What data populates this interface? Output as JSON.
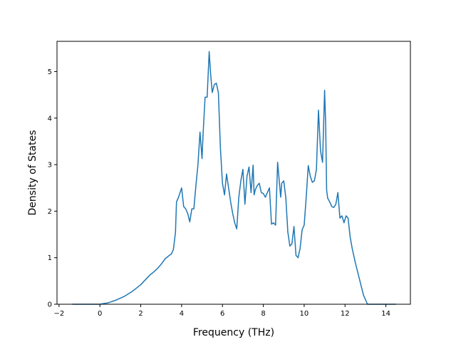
{
  "chart_data": {
    "type": "line",
    "title": "",
    "xlabel": "Frequency (THz)",
    "ylabel": "Density of States",
    "xlim": [
      -2.1,
      15.2
    ],
    "ylim": [
      0,
      5.65
    ],
    "xticks": [
      -2,
      0,
      2,
      4,
      6,
      8,
      10,
      12,
      14
    ],
    "yticks": [
      0,
      1,
      2,
      3,
      4,
      5
    ],
    "grid": false,
    "line_color": "#1f77b4",
    "series": [
      {
        "x": [
          -1.35,
          -0.5,
          0.0,
          0.4,
          0.8,
          1.2,
          1.6,
          2.0,
          2.3,
          2.45,
          2.6,
          2.8,
          3.0,
          3.2,
          3.4,
          3.5,
          3.6,
          3.7,
          3.75,
          3.85,
          4.0,
          4.1,
          4.2,
          4.3,
          4.4,
          4.5,
          4.6,
          4.7,
          4.8,
          4.9,
          5.0,
          5.05,
          5.15,
          5.25,
          5.35,
          5.42,
          5.5,
          5.6,
          5.7,
          5.8,
          5.9,
          6.0,
          6.1,
          6.2,
          6.3,
          6.4,
          6.5,
          6.6,
          6.7,
          6.8,
          6.9,
          7.0,
          7.1,
          7.2,
          7.3,
          7.4,
          7.5,
          7.55,
          7.6,
          7.7,
          7.8,
          7.9,
          8.0,
          8.1,
          8.2,
          8.3,
          8.4,
          8.5,
          8.6,
          8.7,
          8.8,
          8.85,
          8.9,
          9.0,
          9.1,
          9.2,
          9.3,
          9.4,
          9.5,
          9.6,
          9.7,
          9.8,
          9.9,
          10.0,
          10.1,
          10.2,
          10.3,
          10.4,
          10.5,
          10.6,
          10.7,
          10.8,
          10.9,
          11.0,
          11.05,
          11.1,
          11.15,
          11.25,
          11.35,
          11.45,
          11.55,
          11.65,
          11.75,
          11.85,
          11.95,
          12.05,
          12.15,
          12.25,
          12.35,
          12.5,
          12.7,
          12.9,
          13.1,
          13.3,
          14.0,
          14.5
        ],
        "y": [
          0.0,
          0.0,
          0.0,
          0.03,
          0.09,
          0.17,
          0.28,
          0.42,
          0.56,
          0.63,
          0.68,
          0.76,
          0.86,
          0.98,
          1.05,
          1.08,
          1.18,
          1.55,
          2.2,
          2.3,
          2.5,
          2.1,
          2.05,
          1.95,
          1.77,
          2.05,
          2.05,
          2.55,
          3.0,
          3.7,
          3.13,
          3.65,
          4.45,
          4.45,
          5.43,
          4.95,
          4.55,
          4.72,
          4.75,
          4.55,
          3.35,
          2.6,
          2.35,
          2.8,
          2.5,
          2.2,
          1.95,
          1.75,
          1.62,
          2.3,
          2.65,
          2.9,
          2.15,
          2.75,
          2.95,
          2.4,
          2.99,
          2.35,
          2.45,
          2.55,
          2.6,
          2.4,
          2.38,
          2.3,
          2.4,
          2.5,
          1.72,
          1.75,
          1.7,
          3.05,
          2.55,
          2.3,
          2.6,
          2.65,
          2.3,
          1.55,
          1.25,
          1.3,
          1.67,
          1.05,
          1.0,
          1.2,
          1.6,
          1.7,
          2.3,
          2.98,
          2.75,
          2.62,
          2.65,
          2.9,
          4.17,
          3.3,
          3.05,
          4.6,
          3.9,
          2.45,
          2.28,
          2.2,
          2.1,
          2.08,
          2.15,
          2.4,
          1.85,
          1.9,
          1.75,
          1.9,
          1.85,
          1.45,
          1.2,
          0.9,
          0.55,
          0.2,
          0.0,
          0.0,
          0.0,
          0.0
        ]
      }
    ]
  }
}
